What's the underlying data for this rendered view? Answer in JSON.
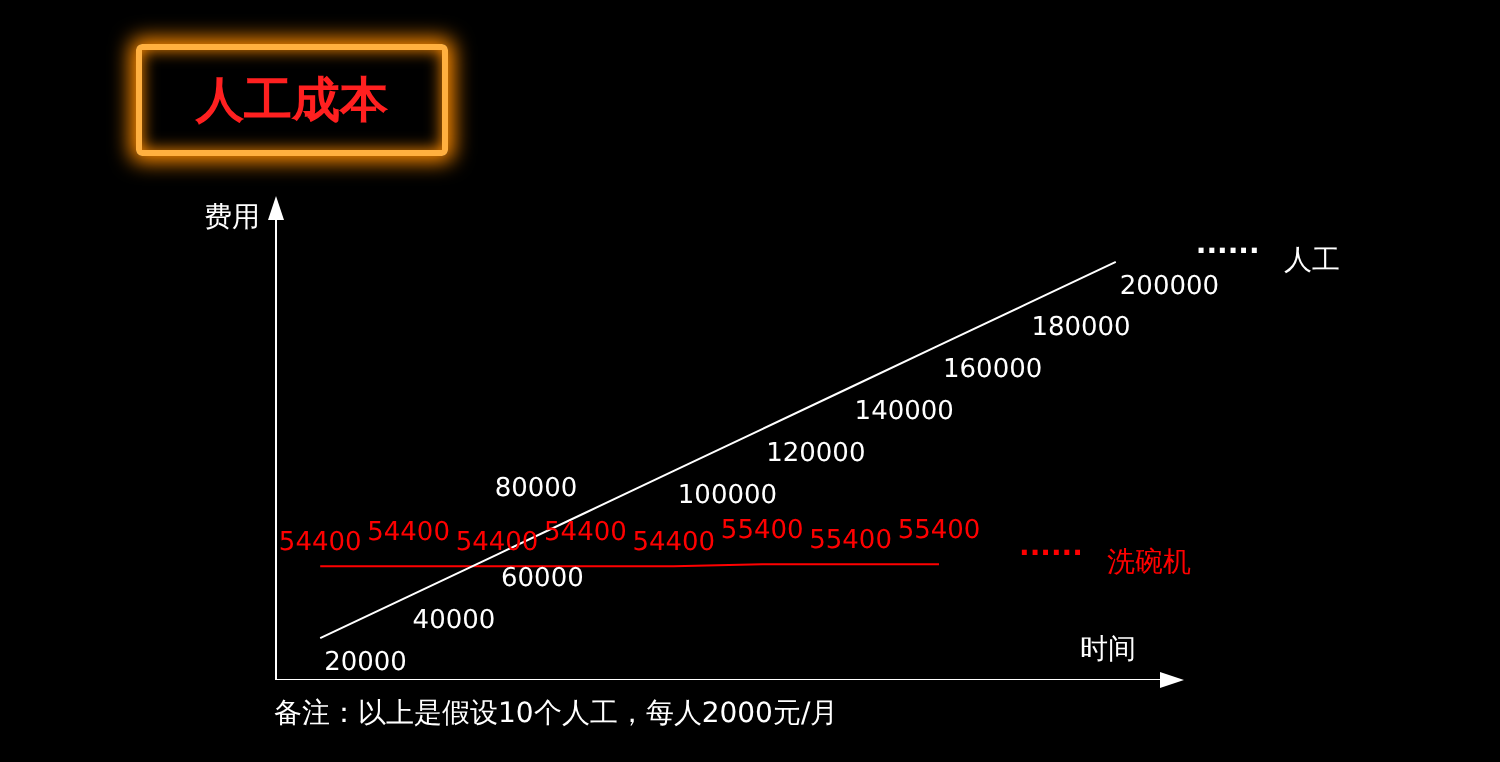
{
  "chart_data": {
    "type": "line",
    "title": "人工成本",
    "xlabel": "时间",
    "ylabel": "费用",
    "categories": [
      null,
      null,
      null,
      null,
      null,
      null,
      null,
      null,
      null,
      null
    ],
    "series": [
      {
        "name": "人工",
        "color": "#ffffff",
        "values": [
          20000,
          40000,
          60000,
          80000,
          100000,
          120000,
          140000,
          160000,
          180000,
          200000
        ]
      },
      {
        "name": "洗碗机",
        "color": "#ff0000",
        "values": [
          54400,
          54400,
          54400,
          54400,
          54400,
          55400,
          55400,
          55400,
          null,
          null
        ]
      }
    ],
    "ylim": [
      0,
      220000
    ],
    "tick_labels": false,
    "data_labels": true,
    "legend": false,
    "grid": false,
    "marker": "none",
    "line_style": "solid",
    "annotations": [
      "......",
      "......",
      "备注：以上是假设10个人工，每人2000元/月"
    ]
  }
}
